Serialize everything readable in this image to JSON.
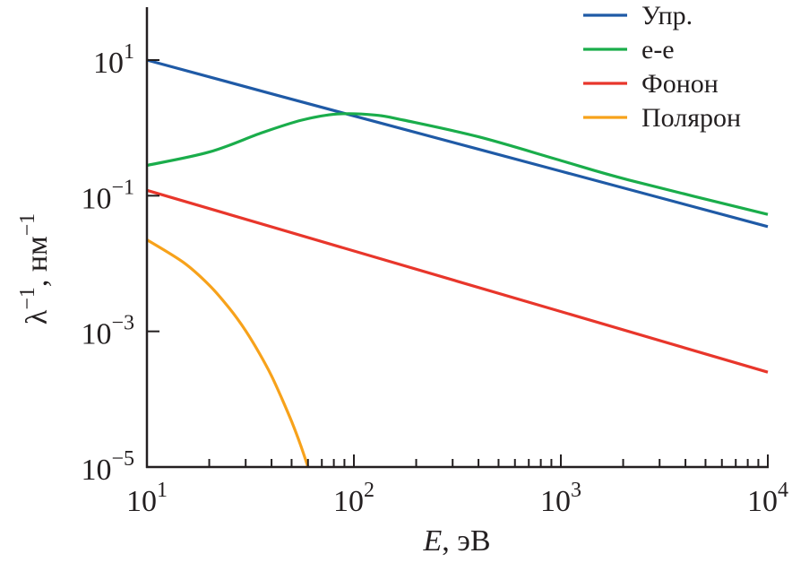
{
  "chart_data": {
    "type": "line",
    "xscale": "log",
    "yscale": "log",
    "xlabel": {
      "var": "E",
      "unit": ", эВ"
    },
    "ylabel": {
      "base": "λ",
      "exp": "−1",
      "unit": ", нм",
      "unit_exp": "−1"
    },
    "xlim": [
      10,
      10000
    ],
    "ylim": [
      1e-05,
      10
    ],
    "xticks": [
      {
        "base": "10",
        "exp": "1"
      },
      {
        "base": "10",
        "exp": "2"
      },
      {
        "base": "10",
        "exp": "3"
      },
      {
        "base": "10",
        "exp": "4"
      }
    ],
    "xtick_values": [
      10,
      100,
      1000,
      10000
    ],
    "yticks": [
      {
        "base": "10",
        "exp": "1"
      },
      {
        "base": "10",
        "exp": "−1"
      },
      {
        "base": "10",
        "exp": "−3"
      },
      {
        "base": "10",
        "exp": "−5"
      }
    ],
    "ytick_values": [
      10,
      0.1,
      0.001,
      1e-05
    ],
    "grid": false,
    "legend_position": "top-right",
    "series": [
      {
        "name": "Упр.",
        "color": "#1f5aa6",
        "x": [
          10,
          100,
          1000,
          10000
        ],
        "y": [
          10,
          1.5,
          0.23,
          0.035
        ]
      },
      {
        "name": "e-e",
        "color": "#1aad4b",
        "x": [
          10,
          20,
          36,
          56,
          83,
          126,
          174,
          400,
          1000,
          2140,
          10000
        ],
        "y": [
          0.28,
          0.44,
          0.85,
          1.3,
          1.6,
          1.55,
          1.3,
          0.74,
          0.33,
          0.17,
          0.053
        ]
      },
      {
        "name": "Фонон",
        "color": "#e8362b",
        "x": [
          10,
          10000
        ],
        "y": [
          0.12,
          0.00025
        ]
      },
      {
        "name": "Полярон",
        "color": "#f7a21b",
        "x": [
          10,
          15,
          20,
          25,
          30,
          35,
          40,
          45,
          50,
          55,
          60
        ],
        "y": [
          0.0224,
          0.0104,
          0.0048,
          0.0022,
          0.00102,
          0.00047,
          0.00022,
          0.0001,
          4.7e-05,
          2.2e-05,
          1e-05
        ]
      }
    ]
  }
}
